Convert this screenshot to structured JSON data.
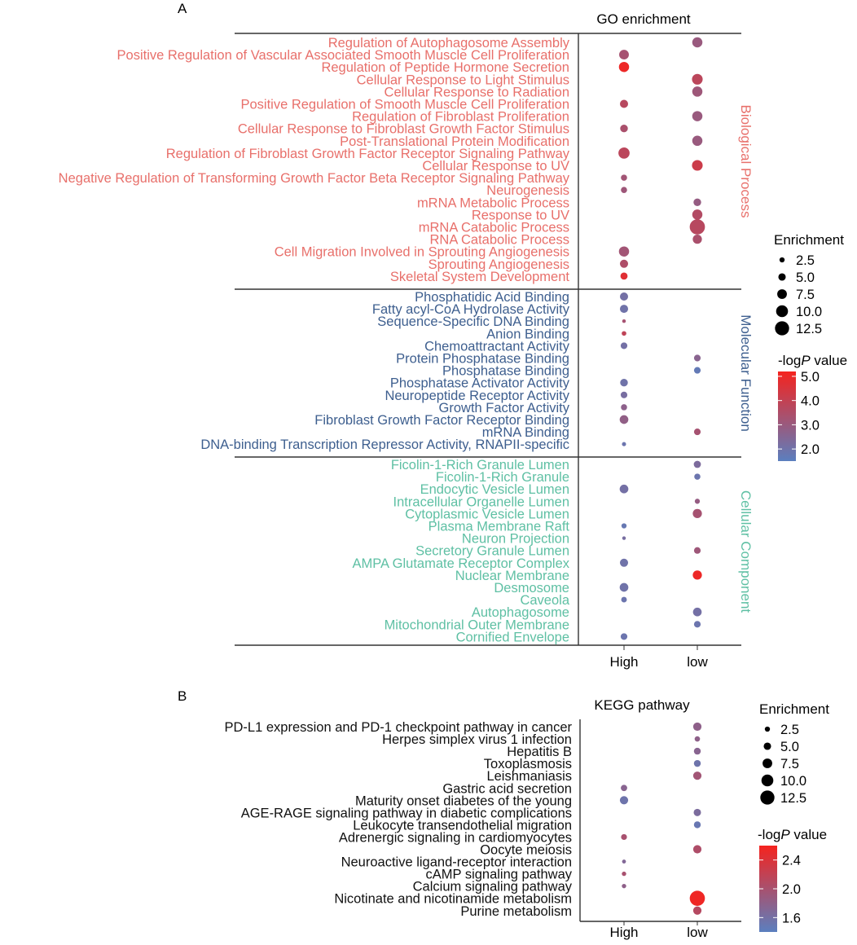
{
  "chart_data": [
    {
      "panel_label": "A",
      "type": "scatter",
      "title": "GO enrichment",
      "columns": [
        "High",
        "low"
      ],
      "colorscale": {
        "low": "#5b7fbf",
        "high": "#f5231e"
      },
      "legend_size": {
        "title": "Enrichment",
        "values": [
          "2.5",
          "5.0",
          "7.5",
          "10.0",
          "12.5"
        ],
        "range": [
          2.5,
          12.5
        ]
      },
      "legend_color": {
        "title_prefix": "-log",
        "title_italic": "P",
        "title_suffix": " value",
        "ticks": [
          "5.0",
          "4.0",
          "3.0",
          "2.0"
        ],
        "range": [
          1.5,
          5.2
        ]
      },
      "groups": [
        {
          "name": "Biological Process",
          "color": "#e8706b",
          "terms": [
            {
              "label": "Regulation of Autophagosome Assembly",
              "points": [
                {
                  "col": "low",
                  "size": 7.5,
                  "logp": 3.0
                }
              ]
            },
            {
              "label": "Positive Regulation of Vascular Associated Smooth Muscle Cell Proliferation",
              "points": [
                {
                  "col": "High",
                  "size": 7.0,
                  "logp": 3.3
                }
              ]
            },
            {
              "label": "Regulation of Peptide Hormone Secretion",
              "points": [
                {
                  "col": "High",
                  "size": 7.5,
                  "logp": 5.0
                }
              ]
            },
            {
              "label": "Cellular Response to Light Stimulus",
              "points": [
                {
                  "col": "low",
                  "size": 8.0,
                  "logp": 3.8
                }
              ]
            },
            {
              "label": "Cellular Response to Radiation",
              "points": [
                {
                  "col": "low",
                  "size": 7.5,
                  "logp": 3.1
                }
              ]
            },
            {
              "label": "Positive Regulation of Smooth Muscle Cell Proliferation",
              "points": [
                {
                  "col": "High",
                  "size": 5.5,
                  "logp": 3.7
                }
              ]
            },
            {
              "label": "Regulation of Fibroblast Proliferation",
              "points": [
                {
                  "col": "low",
                  "size": 7.5,
                  "logp": 3.0
                }
              ]
            },
            {
              "label": "Cellular Response to Fibroblast Growth Factor Stimulus",
              "points": [
                {
                  "col": "High",
                  "size": 5.0,
                  "logp": 3.4
                }
              ]
            },
            {
              "label": "Post-Translational Protein Modification",
              "points": [
                {
                  "col": "low",
                  "size": 7.5,
                  "logp": 3.0
                }
              ]
            },
            {
              "label": "Regulation of Fibroblast Growth Factor Receptor Signaling Pathway",
              "points": [
                {
                  "col": "High",
                  "size": 8.5,
                  "logp": 3.8
                }
              ]
            },
            {
              "label": "Cellular Response to UV",
              "points": [
                {
                  "col": "low",
                  "size": 8.0,
                  "logp": 4.2
                }
              ]
            },
            {
              "label": "Negative Regulation of Transforming Growth Factor Beta Receptor Signaling Pathway",
              "points": [
                {
                  "col": "High",
                  "size": 3.5,
                  "logp": 3.2
                }
              ]
            },
            {
              "label": "Neurogenesis",
              "points": [
                {
                  "col": "High",
                  "size": 3.5,
                  "logp": 3.1
                }
              ]
            },
            {
              "label": "mRNA Metabolic Process",
              "points": [
                {
                  "col": "low",
                  "size": 5.0,
                  "logp": 2.9
                }
              ]
            },
            {
              "label": "Response to UV",
              "points": [
                {
                  "col": "low",
                  "size": 7.5,
                  "logp": 3.6
                }
              ]
            },
            {
              "label": "mRNA Catabolic Process",
              "points": [
                {
                  "col": "low",
                  "size": 12.5,
                  "logp": 3.7
                }
              ]
            },
            {
              "label": "RNA Catabolic Process",
              "points": [
                {
                  "col": "low",
                  "size": 6.5,
                  "logp": 3.4
                }
              ]
            },
            {
              "label": "Cell Migration Involved in Sprouting Angiogenesis",
              "points": [
                {
                  "col": "High",
                  "size": 7.5,
                  "logp": 3.2
                }
              ]
            },
            {
              "label": "Sprouting Angiogenesis",
              "points": [
                {
                  "col": "High",
                  "size": 5.5,
                  "logp": 3.5
                }
              ]
            },
            {
              "label": "Skeletal System Development",
              "points": [
                {
                  "col": "High",
                  "size": 4.5,
                  "logp": 4.7
                }
              ]
            }
          ]
        },
        {
          "name": "Molecular Function",
          "color": "#3e5f8f",
          "terms": [
            {
              "label": "Phosphatidic Acid Binding",
              "points": [
                {
                  "col": "High",
                  "size": 5.5,
                  "logp": 2.1
                }
              ]
            },
            {
              "label": "Fatty acyl-CoA Hydrolase Activity",
              "points": [
                {
                  "col": "High",
                  "size": 5.5,
                  "logp": 2.0
                }
              ]
            },
            {
              "label": "Sequence-Specific DNA Binding",
              "points": [
                {
                  "col": "High",
                  "size": 1.0,
                  "logp": 3.3
                }
              ]
            },
            {
              "label": "Anion Binding",
              "points": [
                {
                  "col": "High",
                  "size": 2.0,
                  "logp": 3.9
                }
              ]
            },
            {
              "label": "Chemoattractant Activity",
              "points": [
                {
                  "col": "High",
                  "size": 4.0,
                  "logp": 2.1
                }
              ]
            },
            {
              "label": "Protein Phosphatase Binding",
              "points": [
                {
                  "col": "low",
                  "size": 4.0,
                  "logp": 2.6
                }
              ]
            },
            {
              "label": "Phosphatase Binding",
              "points": [
                {
                  "col": "low",
                  "size": 4.0,
                  "logp": 1.7
                }
              ]
            },
            {
              "label": "Phosphatase Activator Activity",
              "points": [
                {
                  "col": "High",
                  "size": 5.0,
                  "logp": 2.0
                }
              ]
            },
            {
              "label": "Neuropeptide Receptor Activity",
              "points": [
                {
                  "col": "High",
                  "size": 4.0,
                  "logp": 2.2
                }
              ]
            },
            {
              "label": "Growth Factor Activity",
              "points": [
                {
                  "col": "High",
                  "size": 3.5,
                  "logp": 2.7
                }
              ]
            },
            {
              "label": "Fibroblast Growth Factor Receptor Binding",
              "points": [
                {
                  "col": "High",
                  "size": 6.0,
                  "logp": 2.8
                }
              ]
            },
            {
              "label": "mRNA Binding",
              "points": [
                {
                  "col": "low",
                  "size": 4.0,
                  "logp": 3.3
                }
              ]
            },
            {
              "label": "DNA-binding Transcription Repressor Activity, RNAPII-specific",
              "points": [
                {
                  "col": "High",
                  "size": 1.5,
                  "logp": 1.9
                }
              ]
            }
          ]
        },
        {
          "name": "Cellular Component",
          "color": "#5fc0a4",
          "terms": [
            {
              "label": "Ficolin-1-Rich Granule Lumen",
              "points": [
                {
                  "col": "low",
                  "size": 4.5,
                  "logp": 2.3
                }
              ]
            },
            {
              "label": "Ficolin-1-Rich Granule",
              "points": [
                {
                  "col": "low",
                  "size": 3.5,
                  "logp": 1.9
                }
              ]
            },
            {
              "label": "Endocytic Vesicle Lumen",
              "points": [
                {
                  "col": "High",
                  "size": 6.0,
                  "logp": 2.1
                }
              ]
            },
            {
              "label": "Intracellular Organelle Lumen",
              "points": [
                {
                  "col": "low",
                  "size": 2.5,
                  "logp": 2.9
                }
              ]
            },
            {
              "label": "Cytoplasmic Vesicle Lumen",
              "points": [
                {
                  "col": "low",
                  "size": 6.5,
                  "logp": 3.3
                }
              ]
            },
            {
              "label": "Plasma Membrane Raft",
              "points": [
                {
                  "col": "High",
                  "size": 2.5,
                  "logp": 1.8
                }
              ]
            },
            {
              "label": "Neuron Projection",
              "points": [
                {
                  "col": "High",
                  "size": 1.0,
                  "logp": 2.2
                }
              ]
            },
            {
              "label": "Secretory Granule Lumen",
              "points": [
                {
                  "col": "low",
                  "size": 4.0,
                  "logp": 3.1
                }
              ]
            },
            {
              "label": "AMPA Glutamate Receptor Complex",
              "points": [
                {
                  "col": "High",
                  "size": 5.5,
                  "logp": 2.0
                }
              ]
            },
            {
              "label": "Nuclear Membrane",
              "points": [
                {
                  "col": "low",
                  "size": 6.5,
                  "logp": 5.0
                }
              ]
            },
            {
              "label": "Desmosome",
              "points": [
                {
                  "col": "High",
                  "size": 6.0,
                  "logp": 2.0
                }
              ]
            },
            {
              "label": "Caveola",
              "points": [
                {
                  "col": "High",
                  "size": 3.0,
                  "logp": 1.9
                }
              ]
            },
            {
              "label": "Autophagosome",
              "points": [
                {
                  "col": "low",
                  "size": 6.0,
                  "logp": 2.1
                }
              ]
            },
            {
              "label": "Mitochondrial Outer Membrane",
              "points": [
                {
                  "col": "low",
                  "size": 4.0,
                  "logp": 1.9
                }
              ]
            },
            {
              "label": "Cornified Envelope",
              "points": [
                {
                  "col": "High",
                  "size": 4.0,
                  "logp": 1.9
                }
              ]
            }
          ]
        }
      ]
    },
    {
      "panel_label": "B",
      "type": "scatter",
      "title": "KEGG pathway",
      "columns": [
        "High",
        "low"
      ],
      "colorscale": {
        "low": "#5b7fbf",
        "high": "#f5231e"
      },
      "legend_size": {
        "title": "Enrichment",
        "values": [
          "2.5",
          "5.0",
          "7.5",
          "10.0",
          "12.5"
        ],
        "range": [
          2.5,
          12.5
        ]
      },
      "legend_color": {
        "title_prefix": "-log",
        "title_italic": "P",
        "title_suffix": " value",
        "ticks": [
          "2.4",
          "2.0",
          "1.6"
        ],
        "range": [
          1.4,
          2.6
        ]
      },
      "label_color": "#111111",
      "terms": [
        {
          "label": "PD-L1 expression and PD-1 checkpoint pathway in cancer",
          "points": [
            {
              "col": "low",
              "size": 6.0,
              "logp": 1.8
            }
          ]
        },
        {
          "label": "Herpes simplex virus 1 infection",
          "points": [
            {
              "col": "low",
              "size": 3.0,
              "logp": 1.8
            }
          ]
        },
        {
          "label": "Hepatitis B",
          "points": [
            {
              "col": "low",
              "size": 4.5,
              "logp": 1.75
            }
          ]
        },
        {
          "label": "Toxoplasmosis",
          "points": [
            {
              "col": "low",
              "size": 4.5,
              "logp": 1.55
            }
          ]
        },
        {
          "label": "Leishmaniasis",
          "points": [
            {
              "col": "low",
              "size": 6.0,
              "logp": 1.95
            }
          ]
        },
        {
          "label": "Gastric acid secretion",
          "points": [
            {
              "col": "High",
              "size": 4.0,
              "logp": 1.75
            }
          ]
        },
        {
          "label": "Maturity onset diabetes of the young",
          "points": [
            {
              "col": "High",
              "size": 6.0,
              "logp": 1.55
            }
          ]
        },
        {
          "label": "AGE-RAGE signaling pathway in diabetic complications",
          "points": [
            {
              "col": "low",
              "size": 5.0,
              "logp": 1.65
            }
          ]
        },
        {
          "label": "Leukocyte transendothelial migration",
          "points": [
            {
              "col": "low",
              "size": 4.5,
              "logp": 1.5
            }
          ]
        },
        {
          "label": "Adrenergic signaling in cardiomyocytes",
          "points": [
            {
              "col": "High",
              "size": 3.5,
              "logp": 2.0
            }
          ]
        },
        {
          "label": "Oocyte meiosis",
          "points": [
            {
              "col": "low",
              "size": 6.0,
              "logp": 2.05
            }
          ]
        },
        {
          "label": "Neuroactive ligand-receptor interaction",
          "points": [
            {
              "col": "High",
              "size": 1.5,
              "logp": 1.7
            }
          ]
        },
        {
          "label": "cAMP signaling pathway",
          "points": [
            {
              "col": "High",
              "size": 2.0,
              "logp": 2.0
            }
          ]
        },
        {
          "label": "Calcium signaling pathway",
          "points": [
            {
              "col": "High",
              "size": 2.0,
              "logp": 1.8
            }
          ]
        },
        {
          "label": "Nicotinate and nicotinamide metabolism",
          "points": [
            {
              "col": "low",
              "size": 13.0,
              "logp": 2.55
            }
          ]
        },
        {
          "label": "Purine metabolism",
          "points": [
            {
              "col": "low",
              "size": 6.0,
              "logp": 2.1
            }
          ]
        }
      ]
    }
  ]
}
